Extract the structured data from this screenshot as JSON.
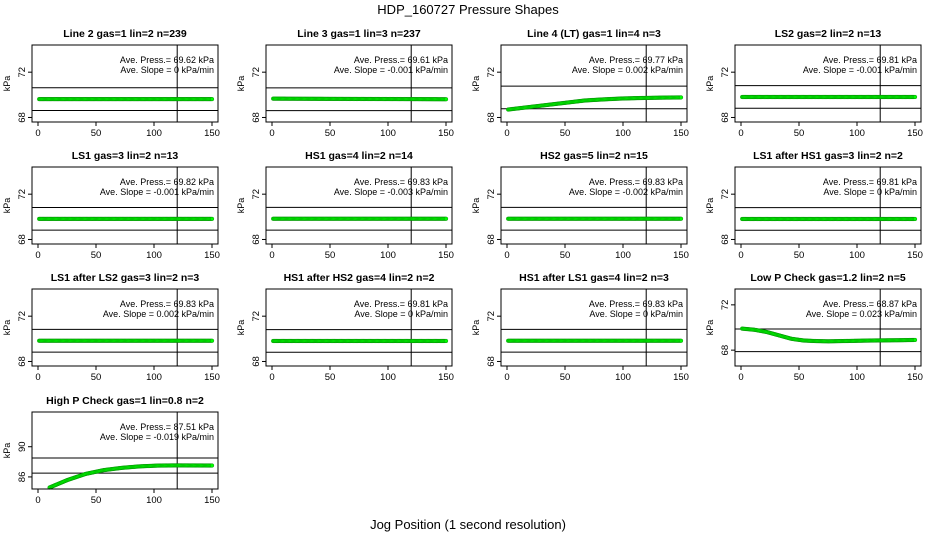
{
  "figure": {
    "title": "HDP_160727  Pressure Shapes",
    "xlabel": "Jog Position (1 second resolution)"
  },
  "chart_data": [
    {
      "type": "scatter",
      "title": "Line 2 gas=1 lin=2 n=239",
      "ylabel": "kPa",
      "xlim": [
        0,
        150
      ],
      "ylim": [
        67.6,
        74.4
      ],
      "xticks": [
        0,
        50,
        100,
        150
      ],
      "yticks": [
        68,
        72
      ],
      "hlines": [
        68.62,
        70.62
      ],
      "vline": 120,
      "annotation": [
        "Ave. Press.= 69.62  kPa",
        "Ave. Slope = 0  kPa/min"
      ],
      "series": [
        {
          "color": "#00ff00",
          "x_start": 1,
          "x_end": 150,
          "values": [
            69.62
          ]
        }
      ]
    },
    {
      "type": "scatter",
      "title": "Line 3 gas=1 lin=3 n=237",
      "ylabel": "kPa",
      "xlim": [
        0,
        150
      ],
      "ylim": [
        67.6,
        74.4
      ],
      "xticks": [
        0,
        50,
        100,
        150
      ],
      "yticks": [
        68,
        72
      ],
      "hlines": [
        68.61,
        70.61
      ],
      "vline": 120,
      "annotation": [
        "Ave. Press.= 69.61  kPa",
        "Ave. Slope = -0.001  kPa/min"
      ],
      "series": [
        {
          "color": "#00ff00",
          "x_start": 1,
          "x_end": 150,
          "values": [
            69.66,
            69.61
          ]
        }
      ]
    },
    {
      "type": "scatter",
      "title": "Line 4 (LT) gas=1 lin=4 n=3",
      "ylabel": "kPa",
      "xlim": [
        0,
        150
      ],
      "ylim": [
        67.6,
        74.4
      ],
      "xticks": [
        0,
        50,
        100,
        150
      ],
      "yticks": [
        68,
        72
      ],
      "hlines": [
        68.77,
        70.77
      ],
      "vline": 120,
      "annotation": [
        "Ave. Press.= 69.77  kPa",
        "Ave. Slope = 0.002  kPa/min"
      ],
      "series": [
        {
          "color": "#00ff00",
          "x_start": 1,
          "x_end": 150,
          "values": [
            68.7,
            68.9,
            69.1,
            69.3,
            69.5,
            69.6,
            69.68,
            69.72,
            69.75,
            69.77
          ]
        }
      ]
    },
    {
      "type": "scatter",
      "title": "LS2 gas=2 lin=2 n=13",
      "ylabel": "kPa",
      "xlim": [
        0,
        150
      ],
      "ylim": [
        67.6,
        74.4
      ],
      "xticks": [
        0,
        50,
        100,
        150
      ],
      "yticks": [
        68,
        72
      ],
      "hlines": [
        68.81,
        70.81
      ],
      "vline": 120,
      "annotation": [
        "Ave. Press.= 69.81  kPa",
        "Ave. Slope = -0.001  kPa/min"
      ],
      "series": [
        {
          "color": "#00ff00",
          "x_start": 1,
          "x_end": 150,
          "values": [
            69.81
          ]
        }
      ]
    },
    {
      "type": "scatter",
      "title": "LS1 gas=3 lin=2 n=13",
      "ylabel": "kPa",
      "xlim": [
        0,
        150
      ],
      "ylim": [
        67.6,
        74.4
      ],
      "xticks": [
        0,
        50,
        100,
        150
      ],
      "yticks": [
        68,
        72
      ],
      "hlines": [
        68.82,
        70.82
      ],
      "vline": 120,
      "annotation": [
        "Ave. Press.= 69.82  kPa",
        "Ave. Slope = -0.001  kPa/min"
      ],
      "series": [
        {
          "color": "#00ff00",
          "x_start": 1,
          "x_end": 150,
          "values": [
            69.82
          ]
        }
      ]
    },
    {
      "type": "scatter",
      "title": "HS1 gas=4 lin=2 n=14",
      "ylabel": "kPa",
      "xlim": [
        0,
        150
      ],
      "ylim": [
        67.6,
        74.4
      ],
      "xticks": [
        0,
        50,
        100,
        150
      ],
      "yticks": [
        68,
        72
      ],
      "hlines": [
        68.83,
        70.83
      ],
      "vline": 120,
      "annotation": [
        "Ave. Press.= 69.83  kPa",
        "Ave. Slope = -0.003  kPa/min"
      ],
      "series": [
        {
          "color": "#00ff00",
          "x_start": 1,
          "x_end": 150,
          "values": [
            69.83
          ]
        }
      ]
    },
    {
      "type": "scatter",
      "title": "HS2 gas=5 lin=2 n=15",
      "ylabel": "kPa",
      "xlim": [
        0,
        150
      ],
      "ylim": [
        67.6,
        74.4
      ],
      "xticks": [
        0,
        50,
        100,
        150
      ],
      "yticks": [
        68,
        72
      ],
      "hlines": [
        68.83,
        70.83
      ],
      "vline": 120,
      "annotation": [
        "Ave. Press.= 69.83  kPa",
        "Ave. Slope = -0.002  kPa/min"
      ],
      "series": [
        {
          "color": "#00ff00",
          "x_start": 1,
          "x_end": 150,
          "values": [
            69.83
          ]
        }
      ]
    },
    {
      "type": "scatter",
      "title": "LS1 after HS1 gas=3 lin=2 n=2",
      "ylabel": "kPa",
      "xlim": [
        0,
        150
      ],
      "ylim": [
        67.6,
        74.4
      ],
      "xticks": [
        0,
        50,
        100,
        150
      ],
      "yticks": [
        68,
        72
      ],
      "hlines": [
        68.81,
        70.81
      ],
      "vline": 120,
      "annotation": [
        "Ave. Press.= 69.81  kPa",
        "Ave. Slope = 0  kPa/min"
      ],
      "series": [
        {
          "color": "#00ff00",
          "x_start": 1,
          "x_end": 150,
          "values": [
            69.81
          ]
        }
      ]
    },
    {
      "type": "scatter",
      "title": "LS1 after LS2 gas=3 lin=2 n=3",
      "ylabel": "kPa",
      "xlim": [
        0,
        150
      ],
      "ylim": [
        67.6,
        74.4
      ],
      "xticks": [
        0,
        50,
        100,
        150
      ],
      "yticks": [
        68,
        72
      ],
      "hlines": [
        68.83,
        70.83
      ],
      "vline": 120,
      "annotation": [
        "Ave. Press.= 69.83  kPa",
        "Ave. Slope = 0.002  kPa/min"
      ],
      "series": [
        {
          "color": "#00ff00",
          "x_start": 1,
          "x_end": 150,
          "values": [
            69.83
          ]
        }
      ]
    },
    {
      "type": "scatter",
      "title": "HS1 after HS2 gas=4 lin=2 n=2",
      "ylabel": "kPa",
      "xlim": [
        0,
        150
      ],
      "ylim": [
        67.6,
        74.4
      ],
      "xticks": [
        0,
        50,
        100,
        150
      ],
      "yticks": [
        68,
        72
      ],
      "hlines": [
        68.81,
        70.81
      ],
      "vline": 120,
      "annotation": [
        "Ave. Press.= 69.81  kPa",
        "Ave. Slope = 0  kPa/min"
      ],
      "series": [
        {
          "color": "#00ff00",
          "x_start": 1,
          "x_end": 150,
          "values": [
            69.81
          ]
        }
      ]
    },
    {
      "type": "scatter",
      "title": "HS1 after LS1 gas=4 lin=2 n=3",
      "ylabel": "kPa",
      "xlim": [
        0,
        150
      ],
      "ylim": [
        67.6,
        74.4
      ],
      "xticks": [
        0,
        50,
        100,
        150
      ],
      "yticks": [
        68,
        72
      ],
      "hlines": [
        68.83,
        70.83
      ],
      "vline": 120,
      "annotation": [
        "Ave. Press.= 69.83  kPa",
        "Ave. Slope = 0  kPa/min"
      ],
      "series": [
        {
          "color": "#00ff00",
          "x_start": 1,
          "x_end": 150,
          "values": [
            69.83
          ]
        }
      ]
    },
    {
      "type": "scatter",
      "title": "Low P Check gas=1.2 lin=2 n=5",
      "ylabel": "kPa",
      "xlim": [
        0,
        150
      ],
      "ylim": [
        66.6,
        73.4
      ],
      "xticks": [
        0,
        50,
        100,
        150
      ],
      "yticks": [
        68,
        72
      ],
      "hlines": [
        67.87,
        69.87
      ],
      "vline": 120,
      "annotation": [
        "Ave. Press.= 68.87  kPa",
        "Ave. Slope = 0.023  kPa/min"
      ],
      "series": [
        {
          "color": "#00ff00",
          "x_start": 1,
          "x_end": 150,
          "values": [
            69.9,
            69.8,
            69.6,
            69.3,
            69.0,
            68.85,
            68.8,
            68.78,
            68.8,
            68.82,
            68.84,
            68.86,
            68.87,
            68.88,
            68.9
          ]
        }
      ]
    },
    {
      "type": "scatter",
      "title": "High P Check gas=1 lin=0.8 n=2",
      "ylabel": "kPa",
      "xlim": [
        0,
        150
      ],
      "ylim": [
        84.4,
        94.6
      ],
      "xticks": [
        0,
        50,
        100,
        150
      ],
      "yticks": [
        86,
        90
      ],
      "hlines": [
        86.51,
        88.51
      ],
      "vline": 120,
      "annotation": [
        "Ave. Press.= 87.51  kPa",
        "Ave. Slope = -0.019  kPa/min"
      ],
      "series": [
        {
          "color": "#00ff00",
          "x_start": 10,
          "x_end": 150,
          "values": [
            84.6,
            85.6,
            86.4,
            86.9,
            87.2,
            87.4,
            87.5,
            87.53,
            87.52,
            87.51
          ]
        }
      ]
    }
  ]
}
